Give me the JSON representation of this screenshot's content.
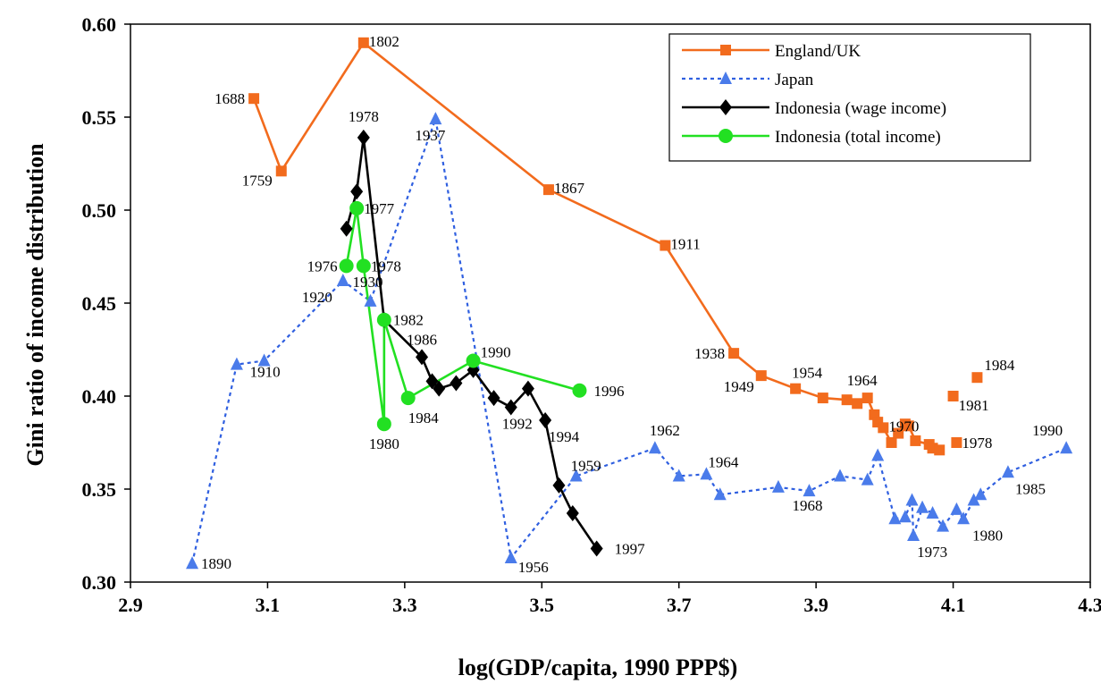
{
  "chart_data": {
    "type": "line",
    "xlabel": "log(GDP/capita, 1990 PPP$)",
    "ylabel": "Gini ratio of income distribution",
    "xlim": [
      2.9,
      4.3
    ],
    "ylim": [
      0.3,
      0.6
    ],
    "xticks": [
      "2.9",
      "3.1",
      "3.3",
      "3.5",
      "3.7",
      "3.9",
      "4.1",
      "4.3"
    ],
    "yticks": [
      "0.30",
      "0.35",
      "0.40",
      "0.45",
      "0.50",
      "0.55",
      "0.60"
    ],
    "grid": false,
    "legend_position": "top-right",
    "series": [
      {
        "name": "England/UK",
        "color": "#F26B1D",
        "line_style": "solid",
        "marker": "square",
        "points": [
          {
            "x": 3.08,
            "y": 0.56,
            "label": "1688"
          },
          {
            "x": 3.12,
            "y": 0.521,
            "label": "1759"
          },
          {
            "x": 3.24,
            "y": 0.59,
            "label": "1802"
          },
          {
            "x": 3.51,
            "y": 0.511,
            "label": "1867"
          },
          {
            "x": 3.68,
            "y": 0.481,
            "label": "1911"
          },
          {
            "x": 3.78,
            "y": 0.423,
            "label": "1938"
          },
          {
            "x": 3.82,
            "y": 0.411,
            "label": "1949"
          },
          {
            "x": 3.87,
            "y": 0.404,
            "label": "1954"
          },
          {
            "x": 3.91,
            "y": 0.399,
            "label": ""
          },
          {
            "x": 3.945,
            "y": 0.398,
            "label": ""
          },
          {
            "x": 3.96,
            "y": 0.396,
            "label": ""
          },
          {
            "x": 3.975,
            "y": 0.399,
            "label": "1964"
          },
          {
            "x": 3.985,
            "y": 0.39,
            "label": ""
          },
          {
            "x": 3.99,
            "y": 0.386,
            "label": ""
          },
          {
            "x": 3.998,
            "y": 0.383,
            "label": "1970"
          },
          {
            "x": 4.01,
            "y": 0.375,
            "label": ""
          },
          {
            "x": 4.02,
            "y": 0.38,
            "label": ""
          },
          {
            "x": 4.03,
            "y": 0.385,
            "label": ""
          },
          {
            "x": 4.035,
            "y": 0.384,
            "label": ""
          },
          {
            "x": 4.045,
            "y": 0.376,
            "label": ""
          },
          {
            "x": 4.065,
            "y": 0.374,
            "label": ""
          },
          {
            "x": 4.07,
            "y": 0.372,
            "label": ""
          },
          {
            "x": 4.08,
            "y": 0.371,
            "label": ""
          }
        ],
        "extra_points": [
          {
            "x": 4.105,
            "y": 0.375,
            "label": "1978"
          },
          {
            "x": 4.1,
            "y": 0.4,
            "label": "1981"
          },
          {
            "x": 4.135,
            "y": 0.41,
            "label": "1984"
          }
        ]
      },
      {
        "name": "Japan",
        "color": "#2F5FE0",
        "marker_color": "#4A7BEA",
        "line_style": "dotted",
        "marker": "triangle",
        "points": [
          {
            "x": 2.99,
            "y": 0.31,
            "label": "1890"
          },
          {
            "x": 3.055,
            "y": 0.417,
            "label": ""
          },
          {
            "x": 3.095,
            "y": 0.419,
            "label": "1910"
          },
          {
            "x": 3.21,
            "y": 0.462,
            "label": "1920"
          },
          {
            "x": 3.25,
            "y": 0.451,
            "label": "1930"
          },
          {
            "x": 3.345,
            "y": 0.549,
            "label": "1937"
          },
          {
            "x": 3.455,
            "y": 0.313,
            "label": "1956"
          },
          {
            "x": 3.55,
            "y": 0.357,
            "label": "1959"
          },
          {
            "x": 3.665,
            "y": 0.372,
            "label": "1962"
          },
          {
            "x": 3.7,
            "y": 0.357,
            "label": ""
          },
          {
            "x": 3.74,
            "y": 0.358,
            "label": "1964"
          },
          {
            "x": 3.76,
            "y": 0.347,
            "label": ""
          },
          {
            "x": 3.845,
            "y": 0.351,
            "label": ""
          },
          {
            "x": 3.89,
            "y": 0.349,
            "label": "1968"
          },
          {
            "x": 3.935,
            "y": 0.357,
            "label": ""
          },
          {
            "x": 3.975,
            "y": 0.355,
            "label": ""
          },
          {
            "x": 3.99,
            "y": 0.368,
            "label": ""
          },
          {
            "x": 4.015,
            "y": 0.334,
            "label": ""
          },
          {
            "x": 4.03,
            "y": 0.335,
            "label": ""
          },
          {
            "x": 4.04,
            "y": 0.344,
            "label": ""
          },
          {
            "x": 4.042,
            "y": 0.325,
            "label": "1973"
          },
          {
            "x": 4.055,
            "y": 0.34,
            "label": ""
          },
          {
            "x": 4.07,
            "y": 0.337,
            "label": ""
          },
          {
            "x": 4.085,
            "y": 0.33,
            "label": ""
          },
          {
            "x": 4.105,
            "y": 0.339,
            "label": ""
          },
          {
            "x": 4.115,
            "y": 0.334,
            "label": "1980"
          },
          {
            "x": 4.13,
            "y": 0.344,
            "label": ""
          },
          {
            "x": 4.14,
            "y": 0.347,
            "label": ""
          },
          {
            "x": 4.18,
            "y": 0.359,
            "label": "1985"
          },
          {
            "x": 4.265,
            "y": 0.372,
            "label": "1990"
          }
        ]
      },
      {
        "name": "Indonesia (wage income)",
        "color": "#000000",
        "line_style": "solid",
        "marker": "diamond",
        "points": [
          {
            "x": 3.215,
            "y": 0.49,
            "label": ""
          },
          {
            "x": 3.23,
            "y": 0.51,
            "label": ""
          },
          {
            "x": 3.24,
            "y": 0.539,
            "label": "1978"
          },
          {
            "x": 3.27,
            "y": 0.441,
            "label": ""
          },
          {
            "x": 3.325,
            "y": 0.421,
            "label": "1986"
          },
          {
            "x": 3.34,
            "y": 0.408,
            "label": ""
          },
          {
            "x": 3.35,
            "y": 0.404,
            "label": ""
          },
          {
            "x": 3.375,
            "y": 0.407,
            "label": ""
          },
          {
            "x": 3.4,
            "y": 0.414,
            "label": ""
          },
          {
            "x": 3.43,
            "y": 0.399,
            "label": ""
          },
          {
            "x": 3.455,
            "y": 0.394,
            "label": "1992"
          },
          {
            "x": 3.48,
            "y": 0.404,
            "label": ""
          },
          {
            "x": 3.505,
            "y": 0.387,
            "label": "1994"
          },
          {
            "x": 3.525,
            "y": 0.352,
            "label": ""
          },
          {
            "x": 3.545,
            "y": 0.337,
            "label": ""
          },
          {
            "x": 3.58,
            "y": 0.318,
            "label": "1997"
          }
        ]
      },
      {
        "name": "Indonesia (total income)",
        "color": "#22E022",
        "line_style": "solid",
        "marker": "circle",
        "points": [
          {
            "x": 3.215,
            "y": 0.47,
            "label": "1976"
          },
          {
            "x": 3.23,
            "y": 0.501,
            "label": "1977"
          },
          {
            "x": 3.24,
            "y": 0.47,
            "label": "1978"
          },
          {
            "x": 3.27,
            "y": 0.385,
            "label": "1980"
          },
          {
            "x": 3.27,
            "y": 0.441,
            "label": "1982"
          },
          {
            "x": 3.305,
            "y": 0.399,
            "label": "1984"
          },
          {
            "x": 3.4,
            "y": 0.419,
            "label": "1990"
          },
          {
            "x": 3.555,
            "y": 0.403,
            "label": "1996"
          }
        ]
      }
    ]
  }
}
